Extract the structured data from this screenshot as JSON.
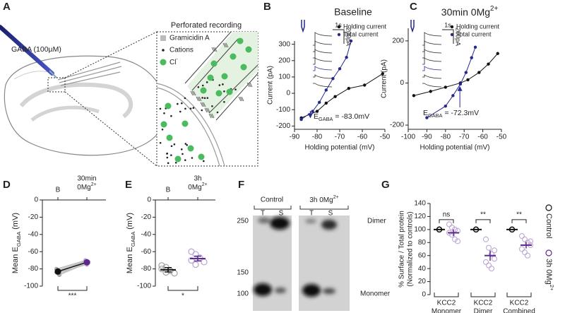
{
  "panel_labels": [
    "A",
    "B",
    "C",
    "D",
    "E",
    "F",
    "G"
  ],
  "panel_a": {
    "drug": "GABA (100µM)",
    "title": "Perforated recording",
    "legend": [
      "Gramicidin A",
      "Cations",
      {
        "text": "Cl",
        "sup": "-"
      }
    ]
  },
  "panel_f": {
    "groups": [
      "Control",
      {
        "text": "3h 0Mg",
        "sup": "2+"
      }
    ],
    "lanes": [
      "T",
      "S",
      "T",
      "S"
    ],
    "markers": [
      "250",
      "150",
      "100"
    ],
    "bands": [
      "Dimer",
      "Monomer"
    ]
  },
  "chart_data": [
    {
      "type": "line",
      "title": "Baseline",
      "xlabel": "Holding potential (mV)",
      "ylabel": "Current (pA)",
      "xlim": [
        -90,
        -50
      ],
      "xticks": [
        -90,
        -80,
        -70,
        -60,
        -50
      ],
      "ylim": [
        -220,
        320
      ],
      "yticks": [
        -200,
        -100,
        0,
        100,
        200,
        300
      ],
      "series": [
        {
          "name": "Holding current",
          "color": "#111111",
          "x": [
            -87,
            -80,
            -76,
            -72,
            -66,
            -59,
            -51
          ],
          "values": [
            -150,
            -110,
            -60,
            -20,
            30,
            50,
            120
          ]
        },
        {
          "name": "Total current",
          "color": "#25288f",
          "x": [
            -87,
            -82,
            -79,
            -76,
            -73,
            -70,
            -67,
            -65
          ],
          "values": [
            -160,
            -110,
            -55,
            20,
            90,
            150,
            220,
            320
          ]
        }
      ],
      "egaba": -83.0,
      "annotation": {
        "text": "E",
        "sub": "GABA",
        "after": " = -83.0mV"
      },
      "inset_scale": [
        "1s",
        "200pA"
      ]
    },
    {
      "type": "line",
      "title": {
        "text": "30min 0Mg",
        "sup": "2+"
      },
      "xlabel": "Holding potential (mV)",
      "ylabel": "Current (pA)",
      "xlim": [
        -100,
        -50
      ],
      "xticks": [
        -100,
        -90,
        -80,
        -70,
        -60,
        -50
      ],
      "ylim": [
        -220,
        260
      ],
      "yticks": [
        -200,
        0,
        200
      ],
      "series": [
        {
          "name": "Holding current",
          "color": "#111111",
          "x": [
            -97,
            -88,
            -80,
            -72,
            -68,
            -62,
            -57,
            -52
          ],
          "values": [
            -60,
            -40,
            -20,
            0,
            15,
            50,
            90,
            140
          ]
        },
        {
          "name": "Total current",
          "color": "#25288f",
          "x": [
            -90,
            -80,
            -76,
            -72,
            -69,
            -66,
            -64
          ],
          "values": [
            -165,
            -110,
            -60,
            -5,
            50,
            120,
            170
          ]
        }
      ],
      "egaba": -72.3,
      "annotation": {
        "text": "E",
        "sub": "GABA",
        "after": " = -72.3mV"
      },
      "inset_scale": [
        "1s",
        "200pA"
      ]
    },
    {
      "type": "paired",
      "categories": [
        [
          "B"
        ],
        [
          "30min",
          {
            "text": "0Mg",
            "sup": "2+"
          }
        ]
      ],
      "category_colors": [
        "#111111",
        "#5c2a8a"
      ],
      "ylabel": {
        "text": "Mean E",
        "sub": "GABA",
        "after": " (mV)"
      },
      "ylim": [
        -100,
        0
      ],
      "yticks": [
        -100,
        -80,
        -60,
        -40,
        -20,
        0
      ],
      "points": [
        [
          -80,
          -82,
          -83,
          -84,
          -85,
          -86,
          -81,
          -84,
          -87
        ],
        [
          -70,
          -71,
          -72,
          -73,
          -74,
          -72,
          -71,
          -75,
          -73
        ]
      ],
      "point_colors": [
        "#a8a8a8",
        "#bfa8d6"
      ],
      "connect": true,
      "means": [
        -83,
        -72.3
      ],
      "errors": [
        1.2,
        1.0
      ],
      "mean_colors": [
        "#111111",
        "#5c2a8a"
      ],
      "mean_marker": "circle",
      "significance": "***"
    },
    {
      "type": "paired",
      "categories": [
        [
          "B"
        ],
        [
          "3h",
          {
            "text": "0Mg",
            "sup": "2+"
          }
        ]
      ],
      "category_colors": [
        "#111111",
        "#5c2a8a"
      ],
      "ylabel": {
        "text": "Mean E",
        "sub": "GABA",
        "after": " (mV)"
      },
      "ylim": [
        -100,
        0
      ],
      "yticks": [
        -100,
        -80,
        -60,
        -40,
        -20,
        0
      ],
      "points": [
        [
          -76,
          -78,
          -82,
          -85,
          -80,
          -84
        ],
        [
          -60,
          -63,
          -67,
          -72,
          -70,
          -75
        ]
      ],
      "point_colors": [
        "#a8a8a8",
        "#bfa8d6"
      ],
      "connect": false,
      "means": [
        -81,
        -68
      ],
      "errors": [
        2.5,
        2.8
      ],
      "mean_colors": [
        "#111111",
        "#5c2a8a"
      ],
      "mean_marker": "bar",
      "significance": "*"
    },
    {
      "type": "dot",
      "ylabel": [
        "% Surface / Total protein",
        "(Normalized to controls)"
      ],
      "ylim": [
        0,
        140
      ],
      "yticks": [
        0,
        20,
        40,
        60,
        80,
        100,
        120,
        140
      ],
      "categories": [
        [
          "KCC2",
          "Monomer"
        ],
        [
          "KCC2",
          "Dimer"
        ],
        [
          "KCC2",
          "Combined"
        ]
      ],
      "series": [
        {
          "name": "Control",
          "color": "#111111",
          "points": [
            [
              100,
              100,
              100,
              100,
              100,
              100,
              100,
              100
            ],
            [
              100,
              100,
              100,
              100,
              100,
              100,
              100,
              100
            ],
            [
              100,
              100,
              100,
              100,
              100,
              100,
              100,
              100
            ]
          ],
          "means": [
            100,
            100,
            100
          ],
          "errors": [
            0.5,
            0.5,
            0.5
          ]
        },
        {
          "name": {
            "text": "3h 0Mg",
            "sup": "2+"
          },
          "color": "#5c2a8a",
          "point_color": "#bfa8d6",
          "points": [
            [
              108,
              103,
              100,
              98,
              95,
              92,
              85,
              82
            ],
            [
              85,
              72,
              62,
              55,
              50,
              45,
              40,
              68
            ],
            [
              90,
              85,
              80,
              76,
              70,
              65,
              60,
              82
            ]
          ],
          "means": [
            95,
            60,
            76
          ],
          "errors": [
            5,
            8,
            5
          ]
        }
      ],
      "significance": [
        "ns",
        "**",
        "**"
      ]
    }
  ]
}
